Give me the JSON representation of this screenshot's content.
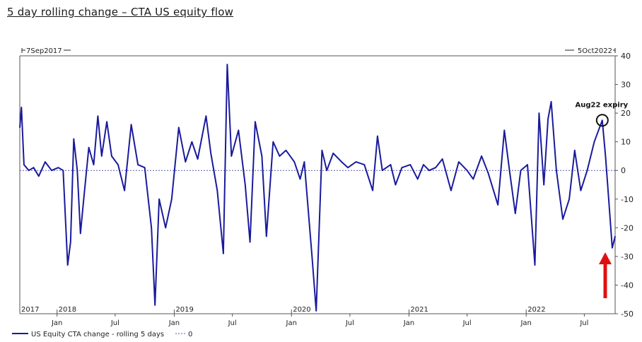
{
  "chart_data": {
    "type": "line",
    "title": "5 day rolling change – CTA US equity flow",
    "date_range": {
      "start_label": "7Sep2017",
      "end_label": "5Oct2022"
    },
    "ylim": [
      -50,
      40
    ],
    "yticks": [
      40,
      30,
      20,
      10,
      0,
      -10,
      -20,
      -30,
      -40,
      -50
    ],
    "x_month_ticks": [
      "Jan",
      "Jul",
      "Jan",
      "Jul",
      "Jan",
      "Jul",
      "Jan",
      "Jul",
      "Jan",
      "Jul",
      "Jan",
      "Jul"
    ],
    "x_year_labels": [
      "2017",
      "2018",
      "2019",
      "2020",
      "2021",
      "2022"
    ],
    "annotation": {
      "label": "Aug22 expiry",
      "x": "2022-08-26",
      "y": 17.5
    },
    "legend": {
      "series": "US Equity CTA change - rolling 5 days",
      "reference": "0",
      "position": "bottom-left"
    },
    "series": [
      {
        "name": "US Equity CTA change - rolling 5 days",
        "color": "#1a1a9c",
        "points": [
          [
            "2017-09-07",
            15
          ],
          [
            "2017-09-12",
            22
          ],
          [
            "2017-09-20",
            2
          ],
          [
            "2017-10-05",
            0
          ],
          [
            "2017-10-20",
            1
          ],
          [
            "2017-11-05",
            -2
          ],
          [
            "2017-11-25",
            3
          ],
          [
            "2017-12-15",
            0
          ],
          [
            "2018-01-05",
            1
          ],
          [
            "2018-01-20",
            0
          ],
          [
            "2018-02-03",
            -33
          ],
          [
            "2018-02-12",
            -25
          ],
          [
            "2018-02-22",
            11
          ],
          [
            "2018-03-05",
            0
          ],
          [
            "2018-03-15",
            -22
          ],
          [
            "2018-03-25",
            -10
          ],
          [
            "2018-04-10",
            8
          ],
          [
            "2018-04-25",
            2
          ],
          [
            "2018-05-08",
            19
          ],
          [
            "2018-05-20",
            5
          ],
          [
            "2018-06-05",
            17
          ],
          [
            "2018-06-20",
            5
          ],
          [
            "2018-07-10",
            2
          ],
          [
            "2018-07-30",
            -7
          ],
          [
            "2018-08-20",
            16
          ],
          [
            "2018-09-10",
            2
          ],
          [
            "2018-10-01",
            1
          ],
          [
            "2018-10-22",
            -20
          ],
          [
            "2018-11-02",
            -47
          ],
          [
            "2018-11-15",
            -10
          ],
          [
            "2018-12-05",
            -20
          ],
          [
            "2018-12-24",
            -10
          ],
          [
            "2019-01-15",
            15
          ],
          [
            "2019-02-05",
            3
          ],
          [
            "2019-02-25",
            10
          ],
          [
            "2019-03-15",
            4
          ],
          [
            "2019-04-10",
            19
          ],
          [
            "2019-04-25",
            6
          ],
          [
            "2019-05-15",
            -7
          ],
          [
            "2019-06-03",
            -29
          ],
          [
            "2019-06-15",
            37
          ],
          [
            "2019-06-28",
            5
          ],
          [
            "2019-07-20",
            14
          ],
          [
            "2019-08-10",
            -5
          ],
          [
            "2019-08-25",
            -25
          ],
          [
            "2019-09-10",
            17
          ],
          [
            "2019-10-01",
            5
          ],
          [
            "2019-10-15",
            -23
          ],
          [
            "2019-11-05",
            10
          ],
          [
            "2019-11-25",
            5
          ],
          [
            "2019-12-15",
            7
          ],
          [
            "2020-01-10",
            3
          ],
          [
            "2020-01-28",
            -3
          ],
          [
            "2020-02-10",
            3
          ],
          [
            "2020-03-05",
            -30
          ],
          [
            "2020-03-18",
            -49
          ],
          [
            "2020-04-05",
            7
          ],
          [
            "2020-04-20",
            0
          ],
          [
            "2020-05-10",
            6
          ],
          [
            "2020-06-05",
            3
          ],
          [
            "2020-06-25",
            1
          ],
          [
            "2020-07-20",
            3
          ],
          [
            "2020-08-15",
            2
          ],
          [
            "2020-09-10",
            -7
          ],
          [
            "2020-09-25",
            12
          ],
          [
            "2020-10-10",
            0
          ],
          [
            "2020-11-05",
            2
          ],
          [
            "2020-11-20",
            -5
          ],
          [
            "2020-12-10",
            1
          ],
          [
            "2021-01-05",
            2
          ],
          [
            "2021-01-28",
            -3
          ],
          [
            "2021-02-15",
            2
          ],
          [
            "2021-03-05",
            0
          ],
          [
            "2021-03-25",
            1
          ],
          [
            "2021-04-15",
            4
          ],
          [
            "2021-05-12",
            -7
          ],
          [
            "2021-06-05",
            3
          ],
          [
            "2021-07-01",
            0
          ],
          [
            "2021-07-20",
            -3
          ],
          [
            "2021-08-15",
            5
          ],
          [
            "2021-09-05",
            -1
          ],
          [
            "2021-10-05",
            -12
          ],
          [
            "2021-10-25",
            14
          ],
          [
            "2021-11-10",
            0
          ],
          [
            "2021-11-28",
            -15
          ],
          [
            "2021-12-15",
            0
          ],
          [
            "2022-01-05",
            2
          ],
          [
            "2022-01-28",
            -33
          ],
          [
            "2022-02-10",
            20
          ],
          [
            "2022-02-25",
            -5
          ],
          [
            "2022-03-10",
            18
          ],
          [
            "2022-03-20",
            24
          ],
          [
            "2022-04-05",
            0
          ],
          [
            "2022-04-25",
            -17
          ],
          [
            "2022-05-15",
            -10
          ],
          [
            "2022-06-01",
            7
          ],
          [
            "2022-06-20",
            -7
          ],
          [
            "2022-07-10",
            0
          ],
          [
            "2022-08-01",
            10
          ],
          [
            "2022-08-26",
            17.5
          ],
          [
            "2022-09-05",
            5
          ],
          [
            "2022-09-15",
            -10
          ],
          [
            "2022-09-26",
            -27
          ],
          [
            "2022-10-05",
            -23
          ]
        ]
      }
    ]
  }
}
